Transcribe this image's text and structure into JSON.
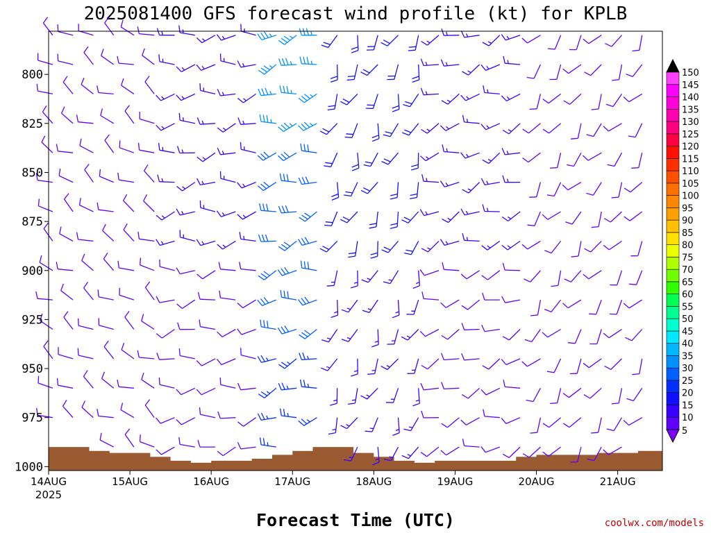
{
  "title": "2025081400 GFS forecast wind profile (kt) for KPLB",
  "x_axis_label": "Forecast Time (UTC)",
  "credit": "coolwx.com/models",
  "colors": {
    "frame": "#000000",
    "terrain": "#9a5a32",
    "credit": "#c00000"
  },
  "chart_data": {
    "type": "wind_barb_timeseries",
    "title": "2025081400 GFS forecast wind profile (kt) for KPLB",
    "xlabel": "Forecast Time (UTC)",
    "ylabel": "",
    "x_ticks": [
      {
        "label": "14AUG",
        "sublabel": "2025"
      },
      {
        "label": "15AUG"
      },
      {
        "label": "16AUG"
      },
      {
        "label": "17AUG"
      },
      {
        "label": "18AUG"
      },
      {
        "label": "19AUG"
      },
      {
        "label": "20AUG"
      },
      {
        "label": "21AUG"
      }
    ],
    "x_range_days": [
      14.0,
      21.55
    ],
    "pressure_ticks": [
      800,
      825,
      850,
      875,
      900,
      925,
      950,
      975,
      1000
    ],
    "pressure_range": [
      778,
      1002
    ],
    "barb_levels": [
      780,
      795,
      810,
      825,
      840,
      855,
      870,
      885,
      900,
      915,
      930,
      945,
      960,
      975,
      990
    ],
    "barb_interval_hours": 6,
    "units": "kt",
    "colorbar": {
      "levels": [
        5,
        10,
        15,
        20,
        25,
        30,
        35,
        40,
        45,
        50,
        55,
        60,
        65,
        70,
        75,
        80,
        85,
        90,
        95,
        100,
        105,
        110,
        115,
        120,
        125,
        130,
        135,
        140,
        145,
        150
      ],
      "colors": [
        "#8000ff",
        "#6000ff",
        "#3a00ff",
        "#1010ff",
        "#0030ff",
        "#0060ff",
        "#0090ff",
        "#00b8ff",
        "#00e8ff",
        "#00ffd0",
        "#00ff90",
        "#00ff50",
        "#30ff00",
        "#70ff00",
        "#b0ff00",
        "#f0ff00",
        "#ffe000",
        "#ffc000",
        "#ffa000",
        "#ff8800",
        "#ff7000",
        "#ff5000",
        "#ff3000",
        "#ff1000",
        "#ff0040",
        "#ff0080",
        "#ff00b0",
        "#ff00d8",
        "#ff00ff",
        "#ff40ff"
      ]
    },
    "surface_pressure": [
      [
        14.0,
        990
      ],
      [
        14.25,
        990
      ],
      [
        14.5,
        992
      ],
      [
        14.75,
        993
      ],
      [
        15.0,
        993
      ],
      [
        15.25,
        995
      ],
      [
        15.5,
        997
      ],
      [
        15.75,
        998
      ],
      [
        16.0,
        997
      ],
      [
        16.25,
        997
      ],
      [
        16.5,
        996
      ],
      [
        16.75,
        994
      ],
      [
        17.0,
        992
      ],
      [
        17.25,
        990
      ],
      [
        17.5,
        990
      ],
      [
        17.75,
        993
      ],
      [
        18.0,
        995
      ],
      [
        18.25,
        997
      ],
      [
        18.5,
        998
      ],
      [
        18.75,
        997
      ],
      [
        19.0,
        997
      ],
      [
        19.25,
        997
      ],
      [
        19.5,
        997
      ],
      [
        19.75,
        995
      ],
      [
        20.0,
        994
      ],
      [
        20.25,
        994
      ],
      [
        20.5,
        994
      ],
      [
        20.75,
        993
      ],
      [
        21.0,
        993
      ],
      [
        21.25,
        992
      ],
      [
        21.55,
        992
      ]
    ],
    "wind_regimes": [
      {
        "t_from": 14.0,
        "t_to": 15.5,
        "dir": 300,
        "spd_upper": 10,
        "spd_lower": 10
      },
      {
        "t_from": 15.5,
        "t_to": 16.75,
        "dir": 260,
        "spd_upper": 15,
        "spd_lower": 10
      },
      {
        "t_from": 16.75,
        "t_to": 17.5,
        "dir": 255,
        "spd_upper": 35,
        "spd_lower": 25
      },
      {
        "t_from": 17.5,
        "t_to": 18.6,
        "dir": 200,
        "spd_upper": 20,
        "spd_lower": 15
      },
      {
        "t_from": 18.6,
        "t_to": 19.9,
        "dir": 250,
        "spd_upper": 15,
        "spd_lower": 10
      },
      {
        "t_from": 19.9,
        "t_to": 21.55,
        "dir": 215,
        "spd_upper": 10,
        "spd_lower": 10
      }
    ]
  }
}
